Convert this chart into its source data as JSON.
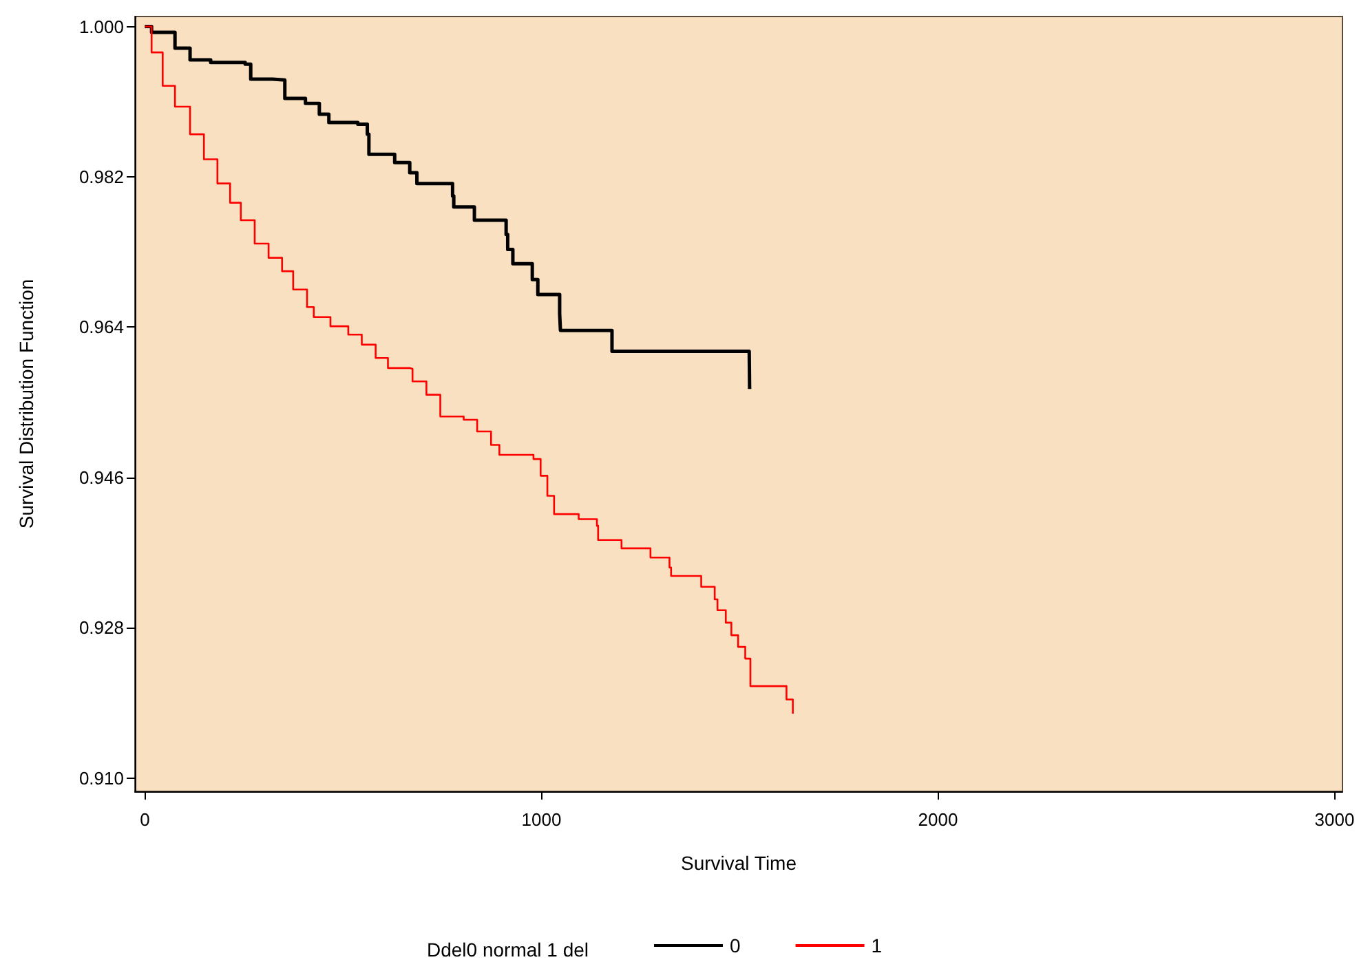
{
  "chart_data": {
    "type": "step",
    "xlabel": "Survival Time",
    "ylabel": "Survival Distribution Function",
    "legend_title": "Ddel0 normal 1 del",
    "legend": "bottom",
    "grid": false,
    "marker": "none",
    "line_style": "solid",
    "xlim": [
      -25,
      3020
    ],
    "xticks": [
      0,
      1000,
      2000,
      3000
    ],
    "ylim": [
      0.9084,
      1.0012
    ],
    "yticks": [
      {
        "value": 0.91,
        "label": "0.910"
      },
      {
        "value": 0.928,
        "label": "0.928"
      },
      {
        "value": 0.946,
        "label": "0.946"
      },
      {
        "value": 0.964,
        "label": "0.964"
      },
      {
        "value": 0.982,
        "label": "0.982"
      },
      {
        "value": 1.0,
        "label": "1.000"
      }
    ],
    "series": [
      {
        "name": "0",
        "color": "#000000",
        "x": [
          0,
          17,
          76,
          114,
          166,
          253,
          267,
          322,
          353,
          405,
          440,
          464,
          537,
          561,
          565,
          630,
          668,
          686,
          776,
          779,
          831,
          911,
          915,
          928,
          977,
          991,
          1046,
          1048,
          1178,
          1524,
          1525
        ],
        "values": [
          1.0,
          0.9993,
          0.9974,
          0.996,
          0.9957,
          0.9955,
          0.9937,
          0.9936,
          0.9914,
          0.9908,
          0.9895,
          0.9885,
          0.9883,
          0.9871,
          0.9847,
          0.9837,
          0.9825,
          0.9812,
          0.9797,
          0.9784,
          0.9768,
          0.9751,
          0.9733,
          0.9716,
          0.9697,
          0.9679,
          0.9656,
          0.9636,
          0.9611,
          0.9611,
          0.9566
        ]
      },
      {
        "name": "1",
        "color": "#ff0000",
        "x": [
          0,
          17,
          45,
          76,
          114,
          149,
          183,
          215,
          242,
          277,
          312,
          346,
          374,
          409,
          426,
          468,
          513,
          547,
          582,
          613,
          668,
          675,
          710,
          745,
          804,
          838,
          873,
          894,
          980,
          998,
          1015,
          1032,
          1094,
          1140,
          1143,
          1202,
          1275,
          1323,
          1327,
          1403,
          1437,
          1444,
          1465,
          1479,
          1496,
          1514,
          1527,
          1618,
          1634
        ],
        "values": [
          1.0,
          0.9969,
          0.9929,
          0.9904,
          0.9871,
          0.9841,
          0.9812,
          0.9789,
          0.9768,
          0.974,
          0.9723,
          0.9707,
          0.9685,
          0.9664,
          0.9652,
          0.9641,
          0.9631,
          0.9619,
          0.9603,
          0.9591,
          0.959,
          0.9575,
          0.9559,
          0.9533,
          0.9529,
          0.9515,
          0.9499,
          0.9487,
          0.9482,
          0.9462,
          0.9438,
          0.9416,
          0.941,
          0.9402,
          0.9385,
          0.9375,
          0.9364,
          0.9352,
          0.9342,
          0.9329,
          0.9314,
          0.9301,
          0.9286,
          0.9271,
          0.9257,
          0.9243,
          0.921,
          0.9194,
          0.9177
        ]
      }
    ]
  }
}
